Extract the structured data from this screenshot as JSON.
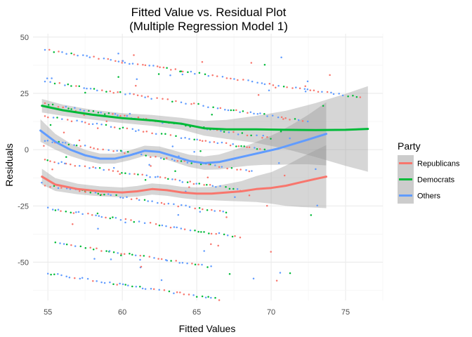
{
  "chart_data": {
    "type": "scatter",
    "title": "Fitted Value vs. Residual Plot",
    "subtitle": "(Multiple Regression Model 1)",
    "xlabel": "Fitted Values",
    "ylabel": "Residuals",
    "xlim": [
      54.0,
      77.5
    ],
    "ylim": [
      -67.0,
      51.5
    ],
    "x_ticks": [
      55,
      60,
      65,
      70,
      75
    ],
    "y_ticks": [
      -50,
      -25,
      0,
      25,
      50
    ],
    "grid": true,
    "legend": {
      "title": "Party",
      "placement": "right"
    },
    "colors": {
      "Republicans": "#F8766D",
      "Democrats": "#00BA38",
      "Others": "#619CFF",
      "band": "#999999"
    },
    "bands": [
      {
        "x_start": 54.8,
        "x_end": 76.2,
        "intercept_at_55": 44.0,
        "slope": -1.0
      },
      {
        "x_start": 54.8,
        "x_end": 72.5,
        "intercept_at_55": 30.0,
        "slope": -1.0
      },
      {
        "x_start": 54.8,
        "x_end": 70.0,
        "intercept_at_55": 20.0,
        "slope": -1.0
      },
      {
        "x_start": 54.8,
        "x_end": 70.0,
        "intercept_at_55": 14.5,
        "slope": -1.0
      },
      {
        "x_start": 54.8,
        "x_end": 69.0,
        "intercept_at_55": 4.0,
        "slope": -1.0
      },
      {
        "x_start": 54.8,
        "x_end": 68.0,
        "intercept_at_55": -5.0,
        "slope": -1.0
      },
      {
        "x_start": 54.8,
        "x_end": 67.0,
        "intercept_at_55": -16.0,
        "slope": -1.0
      },
      {
        "x_start": 55.0,
        "x_end": 68.0,
        "intercept_at_55": -26.0,
        "slope": -1.0
      },
      {
        "x_start": 55.5,
        "x_end": 66.0,
        "intercept_at_55": -41.0,
        "slope": -1.0
      },
      {
        "x_start": 55.0,
        "x_end": 67.0,
        "intercept_at_55": -55.0,
        "slope": -1.0
      }
    ],
    "series": [
      {
        "name": "Republicans",
        "smooth": [
          [
            54.6,
            -12
          ],
          [
            55.5,
            -15.5
          ],
          [
            57,
            -17.5
          ],
          [
            58.5,
            -18.5
          ],
          [
            60,
            -19
          ],
          [
            61,
            -18.5
          ],
          [
            62,
            -17.5
          ],
          [
            63,
            -18
          ],
          [
            64,
            -19
          ],
          [
            65,
            -19.5
          ],
          [
            66,
            -19.5
          ],
          [
            67,
            -19
          ],
          [
            68,
            -18.5
          ],
          [
            69,
            -17.5
          ],
          [
            70,
            -17
          ],
          [
            71,
            -16
          ],
          [
            72,
            -14.5
          ],
          [
            73,
            -13
          ],
          [
            73.7,
            -12
          ]
        ],
        "ci_width": [
          [
            54.6,
            3.5
          ],
          [
            56,
            2.5
          ],
          [
            58,
            2.2
          ],
          [
            60,
            2.2
          ],
          [
            62,
            2.5
          ],
          [
            64,
            2.5
          ],
          [
            66,
            3
          ],
          [
            68,
            4.5
          ],
          [
            70,
            7
          ],
          [
            72,
            11
          ],
          [
            73.7,
            14
          ]
        ]
      },
      {
        "name": "Democrats",
        "smooth": [
          [
            54.6,
            19.5
          ],
          [
            56,
            17.5
          ],
          [
            58,
            15.5
          ],
          [
            60,
            14
          ],
          [
            62,
            13
          ],
          [
            64,
            11.5
          ],
          [
            65.5,
            9.5
          ],
          [
            67,
            9
          ],
          [
            69,
            9
          ],
          [
            71,
            8.8
          ],
          [
            73,
            8.7
          ],
          [
            75,
            8.8
          ],
          [
            76.5,
            9.2
          ]
        ],
        "ci_width": [
          [
            54.6,
            3
          ],
          [
            56,
            2.5
          ],
          [
            58,
            2.2
          ],
          [
            60,
            2.2
          ],
          [
            62,
            2.4
          ],
          [
            64,
            2.6
          ],
          [
            66,
            3.5
          ],
          [
            68,
            5
          ],
          [
            70,
            7
          ],
          [
            72,
            10
          ],
          [
            74,
            14
          ],
          [
            76.5,
            19
          ]
        ]
      },
      {
        "name": "Others",
        "smooth": [
          [
            54.5,
            8.5
          ],
          [
            55.5,
            3.5
          ],
          [
            56.5,
            0
          ],
          [
            57.5,
            -2.5
          ],
          [
            58.5,
            -4
          ],
          [
            59.5,
            -4
          ],
          [
            60.5,
            -2.5
          ],
          [
            61.5,
            -0.5
          ],
          [
            62.5,
            -1
          ],
          [
            63.5,
            -3
          ],
          [
            64.5,
            -5
          ],
          [
            65.5,
            -6
          ],
          [
            66.5,
            -5.5
          ],
          [
            67.5,
            -4
          ],
          [
            68.5,
            -2.5
          ],
          [
            69.5,
            -1
          ],
          [
            70.5,
            0.5
          ],
          [
            71.5,
            2.5
          ],
          [
            72.5,
            4.5
          ],
          [
            73.7,
            7
          ]
        ],
        "ci_width": [
          [
            54.5,
            5
          ],
          [
            55.5,
            3.5
          ],
          [
            57,
            2.5
          ],
          [
            59,
            2.2
          ],
          [
            61,
            2.2
          ],
          [
            63,
            2.5
          ],
          [
            65,
            2.8
          ],
          [
            67,
            3.5
          ],
          [
            69,
            5
          ],
          [
            71,
            8
          ],
          [
            72.5,
            11
          ],
          [
            73.7,
            14
          ]
        ]
      }
    ]
  }
}
